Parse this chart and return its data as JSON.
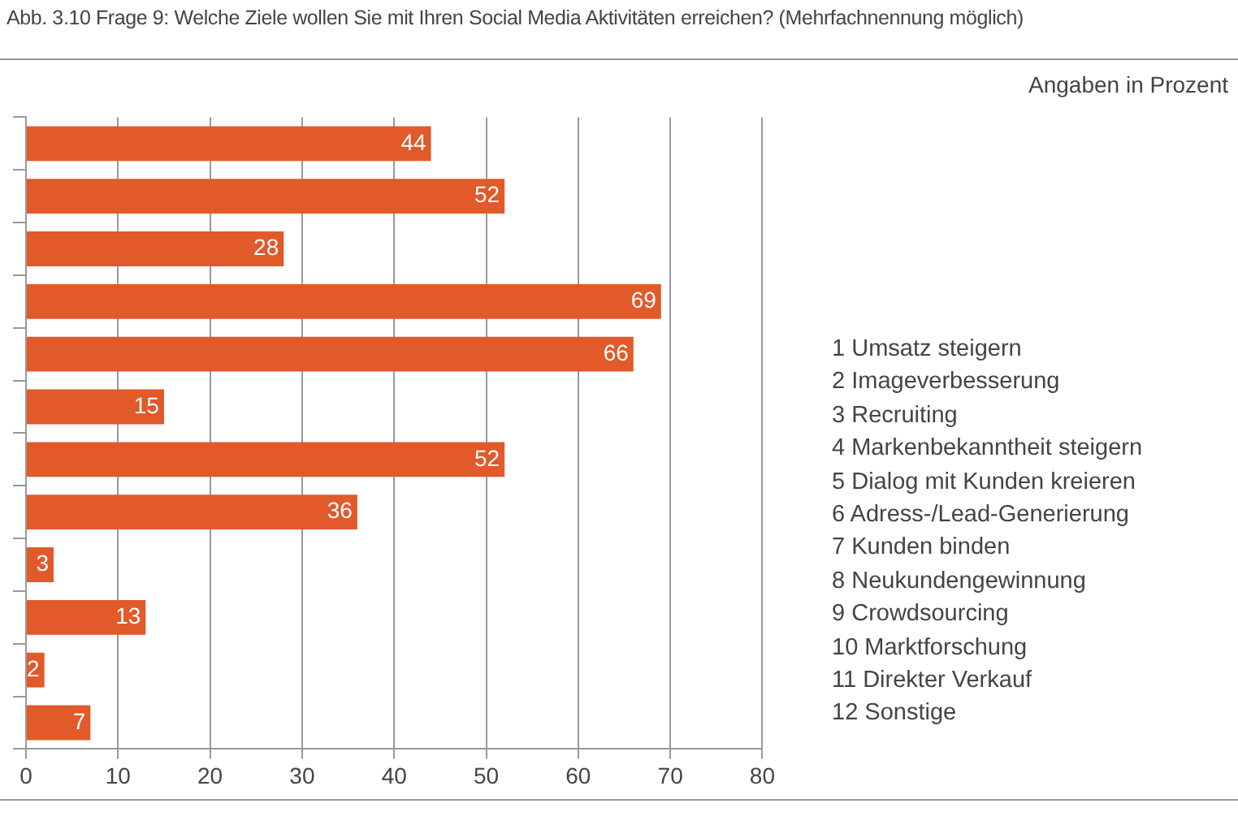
{
  "chart_data": {
    "type": "bar",
    "orientation": "horizontal",
    "title": "Abb. 3.10 Frage 9: Welche Ziele wollen Sie mit Ihren Social Media Aktivitäten erreichen? (Mehrfachnennung möglich)",
    "subtitle": "Angaben in Prozent",
    "categories": [
      null,
      null,
      null,
      null,
      null,
      null,
      null,
      null,
      null,
      null,
      null,
      null
    ],
    "values": [
      44,
      52,
      28,
      69,
      66,
      15,
      52,
      36,
      3,
      13,
      2,
      7
    ],
    "color": "#e2592a",
    "data_labels": true,
    "xlim": [
      0,
      80
    ],
    "xticks": [
      0,
      10,
      20,
      30,
      40,
      50,
      60,
      70,
      80
    ],
    "grid": "x",
    "legend": false,
    "annotations": [
      "1  Umsatz steigern",
      "2  Imageverbesserung",
      "3  Recruiting",
      "4  Markenbekanntheit steigern",
      "5  Dialog mit Kunden kreieren",
      "6  Adress-/Lead-Generierung",
      "7  Kunden binden",
      "8  Neukundengewinnung",
      "9  Crowdsourcing",
      "10  Marktforschung",
      "11  Direkter Verkauf",
      "12  Sonstige"
    ]
  }
}
